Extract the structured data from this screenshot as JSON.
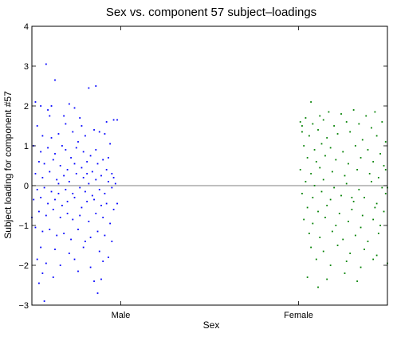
{
  "chart_data": {
    "type": "scatter",
    "title": "Sex vs. component 57 subject–loadings",
    "xlabel": "Sex",
    "ylabel": "Subject loading for component #57",
    "categories": [
      "Male",
      "Female"
    ],
    "ylim": [
      -3,
      4
    ],
    "xlim": [
      0.5,
      2.5
    ],
    "yticks": [
      -3,
      -2,
      -1,
      0,
      1,
      2,
      3,
      4
    ],
    "reference_line": 0,
    "grid": false,
    "series": [
      {
        "color": "#0000ff",
        "points": [
          [
            0.58,
            3.05
          ],
          [
            0.63,
            2.65
          ],
          [
            0.82,
            2.45
          ],
          [
            0.86,
            2.5
          ],
          [
            0.52,
            2.1
          ],
          [
            0.55,
            2.0
          ],
          [
            0.59,
            1.9
          ],
          [
            0.68,
            1.75
          ],
          [
            0.71,
            2.05
          ],
          [
            0.74,
            1.95
          ],
          [
            0.77,
            1.7
          ],
          [
            0.6,
            1.75
          ],
          [
            0.96,
            1.65
          ],
          [
            0.53,
            1.5
          ],
          [
            0.56,
            1.25
          ],
          [
            0.61,
            1.2
          ],
          [
            0.65,
            1.3
          ],
          [
            0.73,
            1.35
          ],
          [
            0.76,
            1.1
          ],
          [
            0.8,
            1.25
          ],
          [
            0.85,
            1.4
          ],
          [
            0.88,
            1.35
          ],
          [
            0.91,
            1.3
          ],
          [
            0.94,
            1.05
          ],
          [
            0.51,
            1.0
          ],
          [
            0.55,
            0.85
          ],
          [
            0.59,
            0.95
          ],
          [
            0.63,
            0.8
          ],
          [
            0.67,
            1.0
          ],
          [
            0.69,
            0.9
          ],
          [
            0.72,
            0.7
          ],
          [
            0.75,
            0.95
          ],
          [
            0.79,
            0.85
          ],
          [
            0.83,
            0.75
          ],
          [
            0.86,
            0.9
          ],
          [
            0.9,
            0.65
          ],
          [
            0.93,
            0.7
          ],
          [
            0.54,
            0.6
          ],
          [
            0.57,
            0.55
          ],
          [
            0.62,
            0.65
          ],
          [
            0.66,
            0.5
          ],
          [
            0.7,
            0.4
          ],
          [
            0.74,
            0.55
          ],
          [
            0.78,
            0.45
          ],
          [
            0.81,
            0.6
          ],
          [
            0.84,
            0.35
          ],
          [
            0.87,
            0.55
          ],
          [
            0.92,
            0.4
          ],
          [
            0.95,
            0.3
          ],
          [
            0.52,
            0.3
          ],
          [
            0.56,
            0.2
          ],
          [
            0.6,
            0.35
          ],
          [
            0.64,
            0.15
          ],
          [
            0.68,
            0.25
          ],
          [
            0.71,
            0.1
          ],
          [
            0.75,
            0.3
          ],
          [
            0.79,
            0.2
          ],
          [
            0.82,
            0.05
          ],
          [
            0.86,
            0.15
          ],
          [
            0.89,
            0.25
          ],
          [
            0.93,
            0.1
          ],
          [
            0.96,
            0.2
          ],
          [
            0.53,
            -0.1
          ],
          [
            0.57,
            -0.05
          ],
          [
            0.61,
            -0.15
          ],
          [
            0.65,
            0.05
          ],
          [
            0.69,
            -0.1
          ],
          [
            0.73,
            -0.2
          ],
          [
            0.77,
            -0.05
          ],
          [
            0.8,
            -0.15
          ],
          [
            0.84,
            -0.25
          ],
          [
            0.88,
            -0.1
          ],
          [
            0.91,
            -0.2
          ],
          [
            0.95,
            -0.05
          ],
          [
            0.51,
            -0.35
          ],
          [
            0.55,
            -0.3
          ],
          [
            0.59,
            -0.45
          ],
          [
            0.63,
            -0.35
          ],
          [
            0.67,
            -0.5
          ],
          [
            0.7,
            -0.4
          ],
          [
            0.74,
            -0.3
          ],
          [
            0.78,
            -0.55
          ],
          [
            0.81,
            -0.4
          ],
          [
            0.85,
            -0.35
          ],
          [
            0.89,
            -0.5
          ],
          [
            0.92,
            -0.45
          ],
          [
            0.96,
            -0.6
          ],
          [
            0.54,
            -0.65
          ],
          [
            0.58,
            -0.75
          ],
          [
            0.62,
            -0.6
          ],
          [
            0.66,
            -0.8
          ],
          [
            0.7,
            -0.7
          ],
          [
            0.73,
            -0.85
          ],
          [
            0.77,
            -0.75
          ],
          [
            0.82,
            -0.9
          ],
          [
            0.86,
            -0.7
          ],
          [
            0.9,
            -0.8
          ],
          [
            0.94,
            -0.95
          ],
          [
            0.52,
            -1.05
          ],
          [
            0.56,
            -1.15
          ],
          [
            0.6,
            -1.1
          ],
          [
            0.64,
            -1.25
          ],
          [
            0.68,
            -1.2
          ],
          [
            0.72,
            -1.35
          ],
          [
            0.76,
            -1.1
          ],
          [
            0.8,
            -1.4
          ],
          [
            0.83,
            -1.3
          ],
          [
            0.87,
            -1.15
          ],
          [
            0.91,
            -1.25
          ],
          [
            0.95,
            -1.4
          ],
          [
            0.55,
            -1.55
          ],
          [
            0.63,
            -1.6
          ],
          [
            0.71,
            -1.7
          ],
          [
            0.79,
            -1.55
          ],
          [
            0.88,
            -1.65
          ],
          [
            0.93,
            -1.8
          ],
          [
            0.53,
            -1.85
          ],
          [
            0.58,
            -1.95
          ],
          [
            0.66,
            -2.0
          ],
          [
            0.74,
            -1.85
          ],
          [
            0.83,
            -2.05
          ],
          [
            0.9,
            -1.9
          ],
          [
            0.56,
            -2.2
          ],
          [
            0.76,
            -2.15
          ],
          [
            0.85,
            -2.4
          ],
          [
            0.89,
            -2.35
          ],
          [
            0.54,
            -2.45
          ],
          [
            0.62,
            -2.3
          ],
          [
            0.87,
            -2.7
          ],
          [
            0.57,
            -2.9
          ],
          [
            0.98,
            1.65
          ],
          [
            0.97,
            0.05
          ],
          [
            0.98,
            -0.45
          ],
          [
            0.5,
            -0.8
          ],
          [
            0.61,
            2.0
          ],
          [
            0.69,
            1.55
          ],
          [
            0.78,
            1.5
          ],
          [
            0.92,
            1.6
          ],
          [
            0.65,
            -0.2
          ],
          [
            0.81,
            0.3
          ]
        ]
      },
      {
        "color": "#008000",
        "points": [
          [
            2.07,
            2.1
          ],
          [
            2.12,
            1.75
          ],
          [
            2.17,
            1.85
          ],
          [
            2.04,
            1.7
          ],
          [
            2.24,
            1.8
          ],
          [
            2.31,
            1.9
          ],
          [
            2.38,
            1.75
          ],
          [
            2.43,
            1.85
          ],
          [
            2.01,
            1.6
          ],
          [
            2.08,
            1.55
          ],
          [
            2.14,
            1.65
          ],
          [
            2.2,
            1.5
          ],
          [
            2.27,
            1.6
          ],
          [
            2.34,
            1.55
          ],
          [
            2.41,
            1.45
          ],
          [
            2.47,
            1.6
          ],
          [
            2.02,
            1.35
          ],
          [
            2.06,
            1.25
          ],
          [
            2.11,
            1.4
          ],
          [
            2.16,
            1.2
          ],
          [
            2.22,
            1.3
          ],
          [
            2.29,
            1.35
          ],
          [
            2.36,
            1.15
          ],
          [
            2.44,
            1.25
          ],
          [
            2.49,
            1.1
          ],
          [
            2.03,
            1.0
          ],
          [
            2.09,
            0.9
          ],
          [
            2.13,
            1.05
          ],
          [
            2.18,
            0.95
          ],
          [
            2.25,
            0.85
          ],
          [
            2.32,
            1.0
          ],
          [
            2.39,
            0.9
          ],
          [
            2.46,
            0.8
          ],
          [
            2.05,
            0.7
          ],
          [
            2.1,
            0.6
          ],
          [
            2.15,
            0.75
          ],
          [
            2.21,
            0.65
          ],
          [
            2.28,
            0.55
          ],
          [
            2.35,
            0.7
          ],
          [
            2.42,
            0.6
          ],
          [
            2.48,
            0.5
          ],
          [
            2.01,
            0.4
          ],
          [
            2.07,
            0.3
          ],
          [
            2.12,
            0.45
          ],
          [
            2.19,
            0.35
          ],
          [
            2.26,
            0.25
          ],
          [
            2.33,
            0.4
          ],
          [
            2.4,
            0.3
          ],
          [
            2.45,
            0.2
          ],
          [
            2.04,
            0.1
          ],
          [
            2.09,
            0.0
          ],
          [
            2.14,
            0.15
          ],
          [
            2.2,
            -0.05
          ],
          [
            2.27,
            0.05
          ],
          [
            2.34,
            -0.1
          ],
          [
            2.41,
            0.1
          ],
          [
            2.47,
            -0.05
          ],
          [
            2.02,
            -0.2
          ],
          [
            2.08,
            -0.3
          ],
          [
            2.13,
            -0.15
          ],
          [
            2.18,
            -0.35
          ],
          [
            2.24,
            -0.25
          ],
          [
            2.31,
            -0.4
          ],
          [
            2.37,
            -0.3
          ],
          [
            2.44,
            -0.45
          ],
          [
            2.49,
            -0.2
          ],
          [
            2.05,
            -0.55
          ],
          [
            2.11,
            -0.65
          ],
          [
            2.16,
            -0.5
          ],
          [
            2.23,
            -0.7
          ],
          [
            2.3,
            -0.6
          ],
          [
            2.36,
            -0.75
          ],
          [
            2.43,
            -0.55
          ],
          [
            2.48,
            -0.65
          ],
          [
            2.03,
            -0.85
          ],
          [
            2.08,
            -0.95
          ],
          [
            2.15,
            -0.8
          ],
          [
            2.21,
            -1.0
          ],
          [
            2.28,
            -0.9
          ],
          [
            2.35,
            -1.05
          ],
          [
            2.42,
            -0.85
          ],
          [
            2.46,
            -1.0
          ],
          [
            2.06,
            -1.2
          ],
          [
            2.12,
            -1.3
          ],
          [
            2.19,
            -1.15
          ],
          [
            2.25,
            -1.35
          ],
          [
            2.32,
            -1.25
          ],
          [
            2.39,
            -1.4
          ],
          [
            2.45,
            -1.2
          ],
          [
            2.07,
            -1.55
          ],
          [
            2.14,
            -1.65
          ],
          [
            2.22,
            -1.5
          ],
          [
            2.29,
            -1.7
          ],
          [
            2.37,
            -1.6
          ],
          [
            2.44,
            -1.75
          ],
          [
            2.1,
            -1.85
          ],
          [
            2.18,
            -2.0
          ],
          [
            2.27,
            -1.9
          ],
          [
            2.35,
            -2.05
          ],
          [
            2.42,
            -1.85
          ],
          [
            2.05,
            -2.3
          ],
          [
            2.16,
            -2.35
          ],
          [
            2.26,
            -2.2
          ],
          [
            2.11,
            -2.55
          ],
          [
            2.33,
            -2.4
          ],
          [
            2.5,
            -1.95
          ],
          [
            2.5,
            -0.05
          ],
          [
            2.49,
            0.4
          ],
          [
            2.02,
            1.5
          ],
          [
            2.3,
            -0.3
          ]
        ]
      }
    ]
  }
}
